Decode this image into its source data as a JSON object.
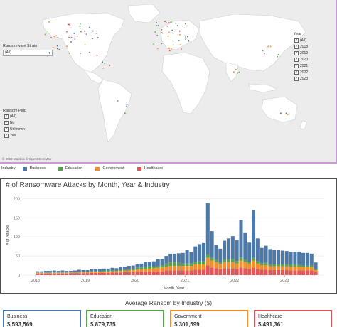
{
  "map": {
    "strain_filter": {
      "title": "Ransomware Strain",
      "selected": "(All)"
    },
    "year_filter": {
      "title": "Year",
      "options": [
        "(All)",
        "2018",
        "2019",
        "2020",
        "2021",
        "2022",
        "2023"
      ]
    },
    "paid_filter": {
      "title": "Ransom Paid",
      "options": [
        "(All)",
        "No",
        "Unknown",
        "Yes"
      ]
    },
    "credit": "© 2023 Mapbox  © OpenStreetMap"
  },
  "legend": {
    "title": "Industry",
    "items": [
      {
        "label": "Business",
        "color": "#4e79a7"
      },
      {
        "label": "Education",
        "color": "#59a14f"
      },
      {
        "label": "Government",
        "color": "#f28e2b"
      },
      {
        "label": "Healthcare",
        "color": "#e15759"
      }
    ]
  },
  "chart_data": {
    "type": "bar",
    "stacked": true,
    "title": "# of Ransomware Attacks by Month, Year & Industry",
    "xlabel": "Month, Year",
    "ylabel": "# of Attacks",
    "ylim": [
      0,
      210
    ],
    "yticks": [
      0,
      50,
      100,
      150,
      200
    ],
    "xticks": [
      "2018",
      "2019",
      "2020",
      "2021",
      "2022",
      "2023"
    ],
    "x_start": "2018-01",
    "series": [
      {
        "name": "Business",
        "color": "#4e79a7",
        "values": [
          3,
          3,
          4,
          4,
          5,
          4,
          5,
          4,
          3,
          4,
          5,
          4,
          4,
          5,
          5,
          6,
          6,
          6,
          7,
          6,
          8,
          8,
          9,
          9,
          9,
          10,
          12,
          12,
          14,
          18,
          16,
          20,
          22,
          22,
          25,
          28,
          35,
          30,
          40,
          45,
          48,
          135,
          70,
          40,
          35,
          50,
          55,
          60,
          55,
          98,
          70,
          50,
          125,
          60,
          40,
          45,
          40,
          38,
          37,
          36,
          35,
          34,
          34,
          34,
          33,
          33,
          31,
          18
        ]
      },
      {
        "name": "Education",
        "color": "#59a14f",
        "values": [
          1,
          1,
          1,
          1,
          1,
          1,
          1,
          1,
          1,
          1,
          1,
          1,
          1,
          1,
          1,
          1,
          2,
          2,
          2,
          2,
          2,
          2,
          3,
          3,
          4,
          5,
          6,
          6,
          4,
          4,
          6,
          8,
          10,
          10,
          8,
          6,
          6,
          6,
          7,
          8,
          8,
          8,
          7,
          6,
          5,
          6,
          7,
          8,
          7,
          8,
          6,
          5,
          7,
          6,
          5,
          6,
          5,
          5,
          5,
          5,
          5,
          5,
          5,
          5,
          4,
          4,
          4,
          2
        ]
      },
      {
        "name": "Government",
        "color": "#f28e2b",
        "values": [
          2,
          2,
          2,
          2,
          2,
          2,
          2,
          2,
          2,
          2,
          3,
          3,
          3,
          3,
          3,
          3,
          3,
          3,
          3,
          3,
          4,
          4,
          4,
          5,
          6,
          6,
          7,
          7,
          8,
          9,
          10,
          10,
          12,
          12,
          12,
          12,
          12,
          12,
          14,
          14,
          14,
          20,
          18,
          16,
          14,
          16,
          16,
          16,
          14,
          18,
          16,
          14,
          18,
          14,
          12,
          12,
          10,
          10,
          10,
          10,
          10,
          10,
          10,
          10,
          9,
          9,
          9,
          5
        ]
      },
      {
        "name": "Healthcare",
        "color": "#e15759",
        "values": [
          4,
          4,
          4,
          4,
          4,
          4,
          4,
          4,
          5,
          5,
          5,
          5,
          5,
          6,
          6,
          6,
          6,
          6,
          7,
          7,
          7,
          8,
          8,
          8,
          9,
          9,
          9,
          10,
          10,
          10,
          10,
          12,
          12,
          12,
          12,
          12,
          12,
          12,
          14,
          14,
          14,
          25,
          20,
          18,
          15,
          18,
          18,
          18,
          16,
          20,
          18,
          16,
          20,
          16,
          14,
          14,
          13,
          13,
          13,
          13,
          13,
          12,
          12,
          12,
          12,
          12,
          12,
          8
        ]
      }
    ]
  },
  "kpi": {
    "title": "Average Ransom by Industry ($)",
    "cards": [
      {
        "label": "Business",
        "value": "$ 593,569",
        "color": "#4e79a7"
      },
      {
        "label": "Education",
        "value": "$ 879,735",
        "color": "#59a14f"
      },
      {
        "label": "Government",
        "value": "$ 301,599",
        "color": "#f28e2b"
      },
      {
        "label": "Healthcare",
        "value": "$ 491,361",
        "color": "#e15759"
      }
    ]
  }
}
